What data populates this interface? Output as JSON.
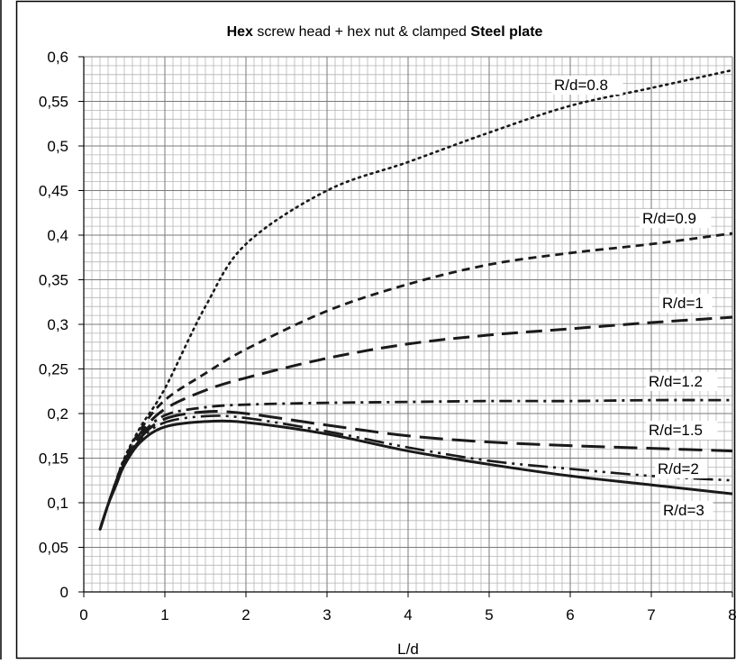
{
  "chart_data": {
    "type": "line",
    "title_parts": [
      {
        "text": "Hex",
        "bold": true
      },
      {
        "text": " screw head + hex nut & clamped ",
        "bold": false
      },
      {
        "text": "Steel plate",
        "bold": true
      }
    ],
    "title": "Hex screw head + hex nut & clamped Steel plate",
    "xlabel": "L/d",
    "ylabel": "",
    "xlim": [
      0,
      8
    ],
    "ylim": [
      0,
      0.6
    ],
    "x_ticks": [
      0,
      1,
      2,
      3,
      4,
      5,
      6,
      7,
      8
    ],
    "x_tick_labels": [
      "0",
      "1",
      "2",
      "3",
      "4",
      "5",
      "6",
      "7",
      "8"
    ],
    "y_ticks": [
      0,
      0.05,
      0.1,
      0.15,
      0.2,
      0.25,
      0.3,
      0.35,
      0.4,
      0.45,
      0.5,
      0.55,
      0.6
    ],
    "y_tick_labels": [
      "0",
      "0,05",
      "0,1",
      "0,15",
      "0,2",
      "0,25",
      "0,3",
      "0,35",
      "0,4",
      "0,45",
      "0,5",
      "0,55",
      "0,6"
    ],
    "grid": true,
    "minor_grid_per_major_x": 10,
    "minor_grid_per_major_y": 5,
    "legend": "none (inline curve labels)",
    "series": [
      {
        "name": "R/d=0.8",
        "dash": "dotted",
        "x": [
          0.2,
          0.3,
          0.4,
          0.5,
          0.7,
          1.0,
          1.5,
          2.0,
          3.0,
          4.0,
          5.0,
          6.0,
          7.0,
          8.0
        ],
        "y": [
          0.07,
          0.098,
          0.125,
          0.15,
          0.185,
          0.228,
          0.32,
          0.39,
          0.45,
          0.482,
          0.515,
          0.545,
          0.565,
          0.585
        ]
      },
      {
        "name": "R/d=0.9",
        "dash": "dashed",
        "x": [
          0.2,
          0.3,
          0.4,
          0.5,
          0.7,
          1.0,
          1.5,
          2.0,
          3.0,
          4.0,
          5.0,
          6.0,
          7.0,
          8.0
        ],
        "y": [
          0.07,
          0.098,
          0.125,
          0.148,
          0.182,
          0.215,
          0.245,
          0.272,
          0.315,
          0.345,
          0.367,
          0.38,
          0.39,
          0.402
        ]
      },
      {
        "name": "R/d=1",
        "dash": "long-dash",
        "x": [
          0.2,
          0.3,
          0.4,
          0.5,
          0.7,
          1.0,
          1.5,
          2.0,
          3.0,
          4.0,
          5.0,
          6.0,
          7.0,
          8.0
        ],
        "y": [
          0.07,
          0.098,
          0.124,
          0.146,
          0.178,
          0.205,
          0.226,
          0.24,
          0.262,
          0.278,
          0.288,
          0.295,
          0.302,
          0.308
        ]
      },
      {
        "name": "R/d=1.2",
        "dash": "dash-dot",
        "x": [
          0.2,
          0.3,
          0.4,
          0.5,
          0.7,
          1.0,
          1.5,
          2.0,
          3.0,
          4.0,
          5.0,
          6.0,
          7.0,
          8.0
        ],
        "y": [
          0.07,
          0.098,
          0.123,
          0.145,
          0.175,
          0.198,
          0.207,
          0.21,
          0.212,
          0.213,
          0.214,
          0.214,
          0.215,
          0.215
        ]
      },
      {
        "name": "R/d=1.5",
        "dash": "long-dash-heavy",
        "x": [
          0.2,
          0.3,
          0.4,
          0.5,
          0.7,
          1.0,
          1.5,
          2.0,
          3.0,
          4.0,
          5.0,
          6.0,
          7.0,
          8.0
        ],
        "y": [
          0.07,
          0.098,
          0.122,
          0.144,
          0.173,
          0.194,
          0.202,
          0.2,
          0.187,
          0.175,
          0.168,
          0.164,
          0.161,
          0.158
        ]
      },
      {
        "name": "R/d=2",
        "dash": "dash-dot-dot",
        "x": [
          0.2,
          0.3,
          0.4,
          0.5,
          0.7,
          1.0,
          1.5,
          2.0,
          3.0,
          4.0,
          5.0,
          6.0,
          7.0,
          8.0
        ],
        "y": [
          0.07,
          0.098,
          0.121,
          0.143,
          0.171,
          0.19,
          0.197,
          0.195,
          0.18,
          0.162,
          0.147,
          0.138,
          0.13,
          0.125
        ]
      },
      {
        "name": "R/d=3",
        "dash": "solid",
        "x": [
          0.2,
          0.3,
          0.4,
          0.5,
          0.7,
          1.0,
          1.5,
          2.0,
          3.0,
          4.0,
          5.0,
          6.0,
          7.0,
          8.0
        ],
        "y": [
          0.07,
          0.098,
          0.12,
          0.142,
          0.168,
          0.185,
          0.191,
          0.19,
          0.177,
          0.158,
          0.143,
          0.13,
          0.12,
          0.11
        ]
      }
    ]
  }
}
